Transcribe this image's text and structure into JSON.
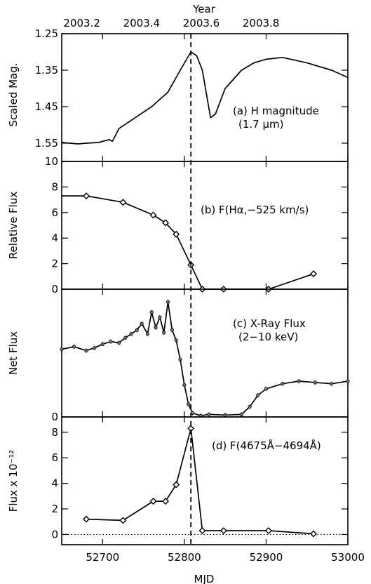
{
  "chart_data": {
    "type": "line",
    "shared_x": {
      "xlabel": "MJD",
      "xlim": [
        52650,
        53000
      ],
      "xticks": [
        52700,
        52800,
        52900,
        53000
      ],
      "top_xlabel": "Year",
      "top_xticks": [
        "2003.2",
        "2003.4",
        "2003.6",
        "2003.8"
      ],
      "marker_line_mjd": 52808
    },
    "panels": [
      {
        "id": "a",
        "type": "line",
        "ylabel": "Scaled Mag.",
        "ylim": [
          1.25,
          1.6
        ],
        "y_inverted": true,
        "yticks": [
          "1.25",
          "1.35",
          "1.45",
          "1.55"
        ],
        "annotation": [
          "(a) H magnitude",
          "(1.7 μm)"
        ],
        "x": [
          52650,
          52670,
          52680,
          52695,
          52708,
          52712,
          52720,
          52740,
          52760,
          52780,
          52795,
          52808,
          52815,
          52822,
          52832,
          52838,
          52850,
          52870,
          52885,
          52900,
          52920,
          52950,
          52980,
          53000
        ],
        "y": [
          1.548,
          1.552,
          1.55,
          1.548,
          1.54,
          1.545,
          1.51,
          1.48,
          1.45,
          1.41,
          1.35,
          1.3,
          1.31,
          1.35,
          1.48,
          1.47,
          1.4,
          1.35,
          1.33,
          1.32,
          1.315,
          1.33,
          1.35,
          1.37
        ]
      },
      {
        "id": "b",
        "type": "line",
        "ylabel": "Relative Flux",
        "ylim": [
          0,
          10
        ],
        "yticks": [
          "0",
          "2",
          "4",
          "6",
          "8",
          "10"
        ],
        "annotation": [
          "(b) F(Hα,−525 km/s)"
        ],
        "x_start": 52650,
        "x": [
          52680,
          52725,
          52762,
          52777,
          52790,
          52808,
          52822,
          52848,
          52903,
          52958
        ],
        "y": [
          7.3,
          6.8,
          5.8,
          5.2,
          4.3,
          1.9,
          0.0,
          0.0,
          0.0,
          1.2
        ]
      },
      {
        "id": "c",
        "type": "line",
        "ylabel": "Net Flux",
        "ylim": [
          0,
          10
        ],
        "yticks": [
          "0"
        ],
        "annotation": [
          "(c) X-Ray Flux",
          "(2−10 keV)"
        ],
        "x": [
          52650,
          52665,
          52680,
          52690,
          52700,
          52710,
          52720,
          52728,
          52735,
          52742,
          52748,
          52755,
          52760,
          52765,
          52770,
          52775,
          52780,
          52785,
          52790,
          52795,
          52800,
          52805,
          52810,
          52820,
          52830,
          52850,
          52870,
          52880,
          52890,
          52900,
          52920,
          52940,
          52960,
          52980,
          53000
        ],
        "y": [
          5.3,
          5.5,
          5.2,
          5.4,
          5.7,
          5.9,
          5.8,
          6.2,
          6.5,
          6.8,
          7.3,
          6.5,
          8.2,
          7.0,
          7.8,
          6.6,
          9.0,
          6.8,
          6.0,
          4.5,
          2.5,
          1.0,
          0.3,
          0.1,
          0.2,
          0.15,
          0.2,
          0.8,
          1.7,
          2.2,
          2.6,
          2.8,
          2.7,
          2.6,
          2.8
        ]
      },
      {
        "id": "d",
        "type": "line",
        "ylabel": "Flux x 10⁻¹²",
        "ylim": [
          -0.8,
          9.2
        ],
        "yticks": [
          "0",
          "2",
          "4",
          "6",
          "8"
        ],
        "annotation": [
          "(d) F(4675Å−4694Å)"
        ],
        "x": [
          52680,
          52725,
          52762,
          52777,
          52790,
          52808,
          52822,
          52848,
          52903,
          52958
        ],
        "y": [
          1.2,
          1.1,
          2.6,
          2.6,
          3.9,
          8.3,
          0.3,
          0.3,
          0.3,
          0.05
        ],
        "zero_line": "dotted"
      }
    ]
  }
}
